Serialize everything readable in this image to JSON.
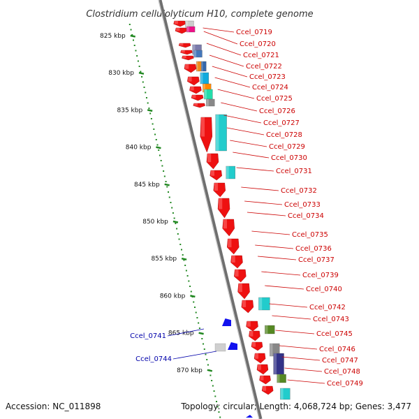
{
  "title": "Clostridium cellulolyticum H10, complete genome",
  "footer": {
    "accession": "Accession: NC_011898",
    "topology": "Topology: circular; Length: 4,068,724 bp; Genes: 3,477"
  },
  "colors": {
    "forward_label": "#cc0000",
    "reverse_label": "#0000aa",
    "forward_gene": "#ee1111",
    "reverse_gene": "#1111ee",
    "backbone": "#888888",
    "ruler": "#228822"
  },
  "ruler": {
    "ticks": [
      {
        "kbp": 825,
        "label": "825 kbp"
      },
      {
        "kbp": 830,
        "label": "830 kbp"
      },
      {
        "kbp": 835,
        "label": "835 kbp"
      },
      {
        "kbp": 840,
        "label": "840 kbp"
      },
      {
        "kbp": 845,
        "label": "845 kbp"
      },
      {
        "kbp": 850,
        "label": "850 kbp"
      },
      {
        "kbp": 855,
        "label": "855 kbp"
      },
      {
        "kbp": 860,
        "label": "860 kbp"
      },
      {
        "kbp": 865,
        "label": "865 kbp"
      },
      {
        "kbp": 870,
        "label": "870 kbp"
      }
    ]
  },
  "forward_labels": [
    "Ccel_0719",
    "Ccel_0720",
    "Ccel_0721",
    "Ccel_0722",
    "Ccel_0723",
    "Ccel_0724",
    "Ccel_0725",
    "Ccel_0726",
    "Ccel_0727",
    "Ccel_0728",
    "Ccel_0729",
    "Ccel_0730",
    "Ccel_0731",
    "Ccel_0732",
    "Ccel_0733",
    "Ccel_0734",
    "Ccel_0735",
    "Ccel_0736",
    "Ccel_0737",
    "Ccel_0739",
    "Ccel_0740",
    "Ccel_0742",
    "Ccel_0743",
    "Ccel_0745",
    "Ccel_0746",
    "Ccel_0747",
    "Ccel_0748",
    "Ccel_0749"
  ],
  "reverse_labels": [
    "Ccel_0741",
    "Ccel_0744"
  ]
}
